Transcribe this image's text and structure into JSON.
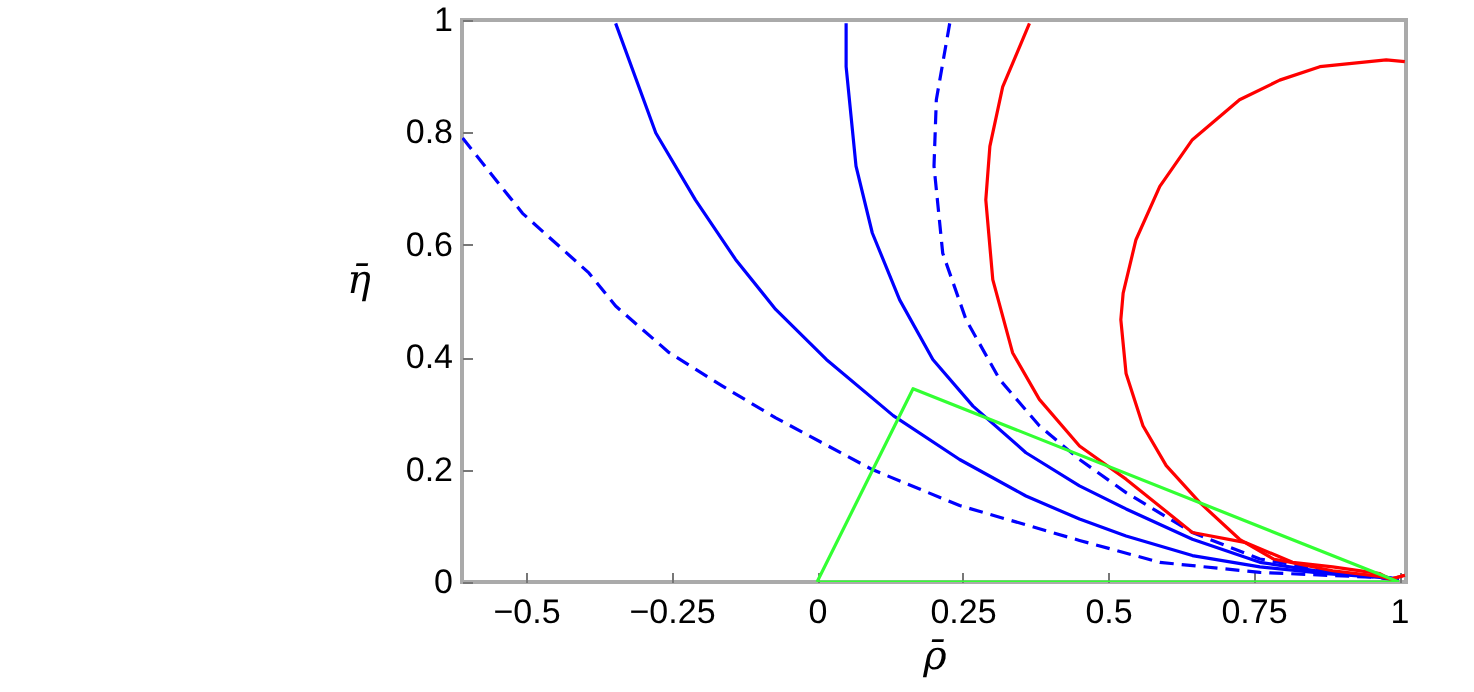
{
  "chart_data": {
    "type": "line",
    "xlabel": "ρ̄",
    "ylabel": "η̄",
    "xlim": [
      -0.61,
      1.012
    ],
    "ylim": [
      0,
      1
    ],
    "xticks": [
      {
        "value": -0.5,
        "label": "−0.5"
      },
      {
        "value": -0.25,
        "label": "−0.25"
      },
      0,
      0.25,
      0.5,
      0.75,
      1
    ],
    "yticks": [
      0,
      0.2,
      0.4,
      0.6,
      0.8,
      1
    ],
    "grid": false,
    "series": [
      {
        "color": "#0000ff",
        "line_style": "dashed",
        "x": [
          -0.609,
          -0.506,
          -0.392,
          -0.346,
          -0.254,
          -0.163,
          -0.071,
          0.095,
          0.245,
          0.451,
          0.589,
          0.761,
          0.967,
          1
        ],
        "values": [
          0.79,
          0.656,
          0.55,
          0.491,
          0.408,
          0.349,
          0.292,
          0.2,
          0.136,
          0.074,
          0.035,
          0.017,
          0.008,
          0.005
        ]
      },
      {
        "color": "#0000ff",
        "line_style": "solid",
        "x": [
          -0.346,
          -0.277,
          -0.209,
          -0.14,
          -0.071,
          0.016,
          0.131,
          0.245,
          0.359,
          0.451,
          0.531,
          0.645,
          0.761,
          0.875,
          0.967,
          1
        ],
        "values": [
          0.994,
          0.799,
          0.68,
          0.574,
          0.485,
          0.396,
          0.296,
          0.218,
          0.153,
          0.112,
          0.082,
          0.047,
          0.027,
          0.015,
          0.008,
          0.005
        ]
      },
      {
        "color": "#0000ff",
        "line_style": "solid",
        "x": [
          0.05,
          0.05,
          0.067,
          0.095,
          0.142,
          0.199,
          0.268,
          0.359,
          0.451,
          0.531,
          0.645,
          0.761,
          0.875,
          0.967,
          1
        ],
        "values": [
          0.994,
          0.917,
          0.74,
          0.621,
          0.502,
          0.396,
          0.313,
          0.23,
          0.171,
          0.13,
          0.076,
          0.035,
          0.017,
          0.01,
          0.005
        ]
      },
      {
        "color": "#0000ff",
        "line_style": "dashed",
        "x": [
          0.228,
          0.205,
          0.201,
          0.216,
          0.256,
          0.314,
          0.382,
          0.451,
          0.531,
          0.645,
          0.761,
          0.875,
          1
        ],
        "values": [
          0.994,
          0.858,
          0.74,
          0.585,
          0.467,
          0.36,
          0.278,
          0.218,
          0.159,
          0.088,
          0.041,
          0.02,
          0.003
        ]
      },
      {
        "color": "#ff0000",
        "line_style": "solid",
        "x": [
          0.365,
          0.319,
          0.297,
          0.29,
          0.302,
          0.336,
          0.382,
          0.451,
          0.531,
          0.645,
          0.737,
          0.817,
          0.886,
          0.967,
          0.985,
          1.01
        ],
        "values": [
          0.994,
          0.881,
          0.775,
          0.68,
          0.538,
          0.408,
          0.325,
          0.242,
          0.183,
          0.088,
          0.07,
          0.035,
          0.027,
          0.015,
          0.005,
          0.012
        ]
      },
      {
        "color": "#ff0000",
        "line_style": "solid",
        "x": [
          1.01,
          0.978,
          0.864,
          0.795,
          0.726,
          0.645,
          0.589,
          0.548,
          0.526,
          0.522,
          0.531,
          0.56,
          0.6,
          0.657,
          0.726,
          0.784,
          0.886,
          0.967,
          0.985,
          1.01
        ],
        "values": [
          0.926,
          0.929,
          0.917,
          0.893,
          0.858,
          0.787,
          0.704,
          0.609,
          0.514,
          0.467,
          0.371,
          0.278,
          0.207,
          0.142,
          0.076,
          0.041,
          0.02,
          0.01,
          0.005,
          0.012
        ]
      },
      {
        "color": "#33ff33",
        "line_style": "solid",
        "x": [
          0,
          0.165,
          1
        ],
        "values": [
          0,
          0.344,
          0
        ]
      },
      {
        "color": "#33ff33",
        "line_style": "solid",
        "x": [
          0,
          1
        ],
        "values": [
          0,
          0
        ]
      }
    ]
  }
}
